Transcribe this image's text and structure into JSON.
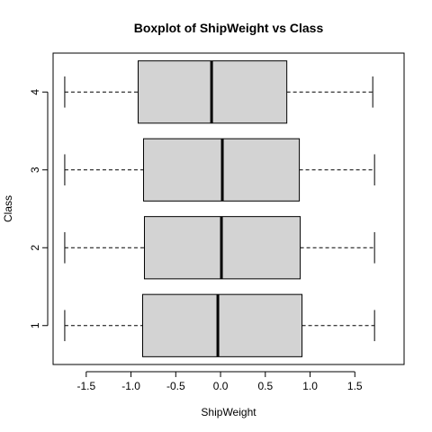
{
  "chart_data": {
    "type": "boxplot",
    "orientation": "horizontal",
    "title": "Boxplot of ShipWeight vs Class",
    "xlabel": "ShipWeight",
    "ylabel": "Class",
    "xlim": [
      -1.87,
      2.05
    ],
    "x_ticks": [
      -1.5,
      -1.0,
      -0.5,
      0.0,
      0.5,
      1.0,
      1.5
    ],
    "x_tick_labels": [
      "-1.5",
      "-1.0",
      "-0.5",
      "0.0",
      "0.5",
      "1.0",
      "1.5"
    ],
    "categories": [
      "1",
      "2",
      "3",
      "4"
    ],
    "box_color": "#d3d3d3",
    "boxes": [
      {
        "category": "1",
        "whisker_low": -1.74,
        "q1": -0.87,
        "median": -0.03,
        "q3": 0.91,
        "whisker_high": 1.72
      },
      {
        "category": "2",
        "whisker_low": -1.74,
        "q1": -0.85,
        "median": 0.01,
        "q3": 0.89,
        "whisker_high": 1.72
      },
      {
        "category": "3",
        "whisker_low": -1.74,
        "q1": -0.86,
        "median": 0.02,
        "q3": 0.88,
        "whisker_high": 1.72
      },
      {
        "category": "4",
        "whisker_low": -1.74,
        "q1": -0.92,
        "median": -0.1,
        "q3": 0.74,
        "whisker_high": 1.7
      }
    ]
  }
}
